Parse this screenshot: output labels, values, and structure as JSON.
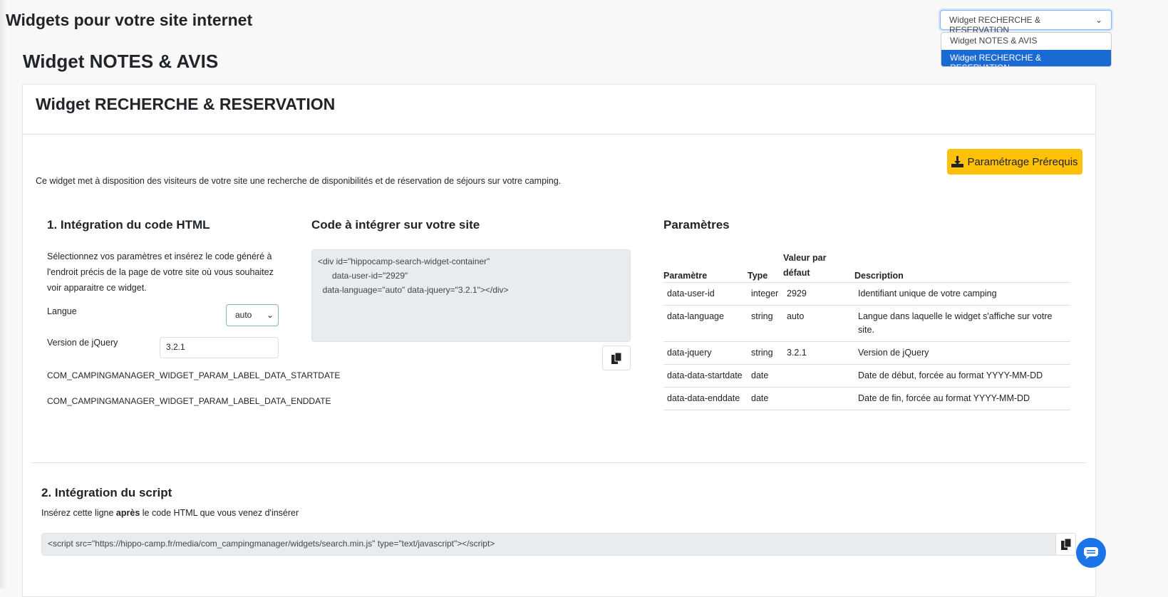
{
  "page": {
    "title": "Widgets pour votre site internet",
    "subtitle": "Widget NOTES & AVIS"
  },
  "widget_select": {
    "value": "Widget RECHERCHE & RESERVATION",
    "options": [
      "Widget NOTES & AVIS",
      "Widget RECHERCHE & RESERVATION"
    ],
    "highlight_color": "#1a6ad4"
  },
  "card": {
    "title": "Widget RECHERCHE & RESERVATION",
    "prereq_button": "Paramétrage Prérequis",
    "button_color": "#ffc107",
    "description": "Ce widget met à disposition des visiteurs de votre site une recherche de disponibilités et de réservation de séjours sur votre camping."
  },
  "section1": {
    "title": "1. Intégration du code HTML",
    "intro": "Sélectionnez vos paramètres et insérez le code généré à l'endroit précis de la page de votre site où vous souhaitez voir apparaitre ce widget.",
    "langue_label": "Langue",
    "langue_value": "auto",
    "jquery_label": "Version de jQuery",
    "jquery_value": "3.2.1",
    "startdate_label": "COM_CAMPINGMANAGER_WIDGET_PARAM_LABEL_DATA_STARTDATE",
    "enddate_label": "COM_CAMPINGMANAGER_WIDGET_PARAM_LABEL_DATA_ENDDATE"
  },
  "code": {
    "title": "Code à intégrer sur votre site",
    "lines": [
      "<div id=\"hippocamp-search-widget-container\"",
      "      data-user-id=\"2929\"",
      "  data-language=\"auto\" data-jquery=\"3.2.1\"></div>"
    ]
  },
  "params": {
    "title": "Paramètres",
    "headers": [
      "Paramètre",
      "Type",
      "Valeur par défaut",
      "Description"
    ],
    "rows": [
      [
        "data-user-id",
        "integer",
        "2929",
        "Identifiant unique de votre camping"
      ],
      [
        "data-language",
        "string",
        "auto",
        "Langue dans laquelle le widget s'affiche sur votre site."
      ],
      [
        "data-jquery",
        "string",
        "3.2.1",
        "Version de jQuery"
      ],
      [
        "data-data-startdate",
        "date",
        "",
        "Date de début, forcée au format YYYY-MM-DD"
      ],
      [
        "data-data-enddate",
        "date",
        "",
        "Date de fin, forcée au format YYYY-MM-DD"
      ]
    ]
  },
  "section2": {
    "title": "2. Intégration du script",
    "text_before": "Insérez cette ligne ",
    "text_bold": "après",
    "text_after": " le code HTML que vous venez d'insérer",
    "script": "<script src=\"https://hippo-camp.fr/media/com_campingmanager/widgets/search.min.js\" type=\"text/javascript\"></script>"
  }
}
